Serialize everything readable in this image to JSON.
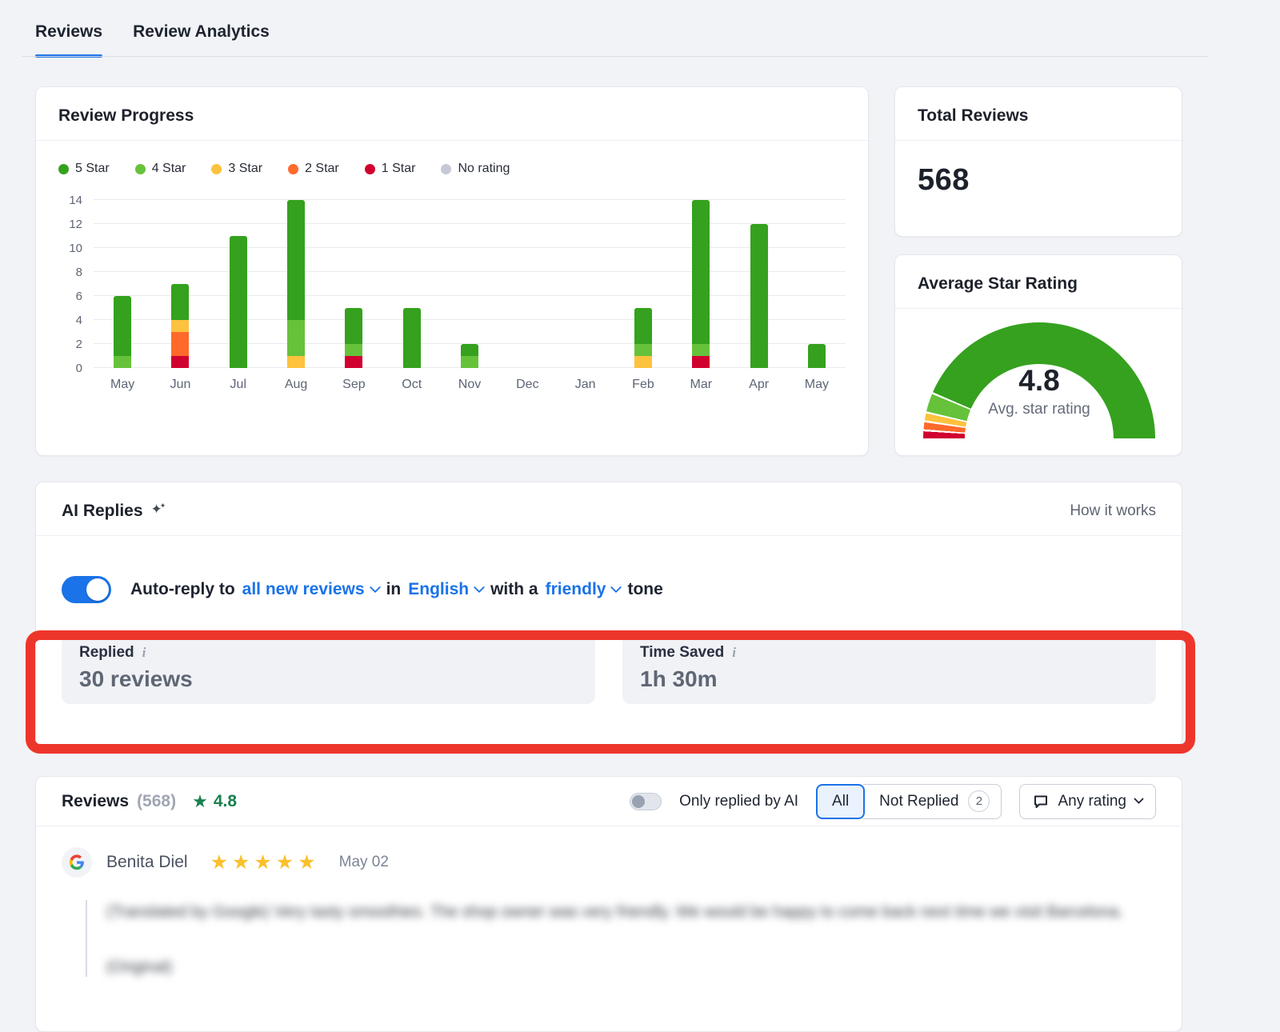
{
  "tabs": {
    "reviews": "Reviews",
    "review_analytics": "Review Analytics"
  },
  "review_progress": {
    "title": "Review Progress"
  },
  "chart_data": {
    "type": "stacked_bar",
    "title": "Review Progress",
    "categories": [
      "May",
      "Jun",
      "Jul",
      "Aug",
      "Sep",
      "Oct",
      "Nov",
      "Dec",
      "Jan",
      "Feb",
      "Mar",
      "Apr",
      "May"
    ],
    "series": [
      {
        "name": "1 Star",
        "color": "#d0002f",
        "values": [
          0,
          1,
          0,
          0,
          1,
          0,
          0,
          0,
          0,
          0,
          1,
          0,
          0
        ]
      },
      {
        "name": "2 Star",
        "color": "#ff6a2b",
        "values": [
          0,
          2,
          0,
          0,
          0,
          0,
          0,
          0,
          0,
          0,
          0,
          0,
          0
        ]
      },
      {
        "name": "3 Star",
        "color": "#fdc23e",
        "values": [
          0,
          1,
          0,
          1,
          0,
          0,
          0,
          0,
          0,
          1,
          0,
          0,
          0
        ]
      },
      {
        "name": "4 Star",
        "color": "#66c23a",
        "values": [
          1,
          0,
          0,
          3,
          1,
          0,
          1,
          0,
          0,
          1,
          1,
          0,
          0
        ]
      },
      {
        "name": "5 Star",
        "color": "#35a11e",
        "values": [
          5,
          3,
          11,
          10,
          3,
          5,
          1,
          0,
          0,
          3,
          12,
          12,
          2
        ]
      }
    ],
    "legend": [
      {
        "label": "5 Star",
        "color": "#35a11e"
      },
      {
        "label": "4 Star",
        "color": "#66c23a"
      },
      {
        "label": "3 Star",
        "color": "#fdc23e"
      },
      {
        "label": "2 Star",
        "color": "#ff6a2b"
      },
      {
        "label": "1 Star",
        "color": "#d0002f"
      },
      {
        "label": "No rating",
        "color": "#c4c9d4"
      }
    ],
    "ylim": [
      0,
      14
    ],
    "yticks": [
      0,
      2,
      4,
      6,
      8,
      10,
      12,
      14
    ],
    "grid": true,
    "legend_position": "top",
    "stack_order": "1-star at bottom, 5-star on top"
  },
  "total_reviews": {
    "title": "Total Reviews",
    "value": "568"
  },
  "average_star_rating": {
    "title": "Average Star Rating",
    "value": "4.8",
    "caption": "Avg. star rating",
    "gauge": {
      "gap_deg": 1,
      "segments": [
        {
          "label": "1 Star",
          "color": "#d0002f",
          "sweep_deg": 3.5
        },
        {
          "label": "2 Star",
          "color": "#ff6a2b",
          "sweep_deg": 3.5
        },
        {
          "label": "3 Star",
          "color": "#fdc23e",
          "sweep_deg": 3.5
        },
        {
          "label": "4 Star",
          "color": "#66c23a",
          "sweep_deg": 9
        },
        {
          "label": "5 Star",
          "color": "#35a11e",
          "sweep_deg": 156.5
        }
      ]
    }
  },
  "ai_replies": {
    "title": "AI Replies",
    "how_it_works": "How it works",
    "toggle_on": true,
    "sentence": {
      "part1": "Auto-reply to",
      "reviews_dropdown": "all new reviews",
      "part2": "in",
      "language_dropdown": "English",
      "part3": "with a",
      "tone_dropdown": "friendly",
      "part4": "tone"
    },
    "stats": {
      "replied_label": "Replied",
      "replied_value": "30 reviews",
      "time_saved_label": "Time Saved",
      "time_saved_value": "1h 30m"
    }
  },
  "reviews_section": {
    "title": "Reviews",
    "count": "(568)",
    "avg_rating": "4.8",
    "filters": {
      "only_ai_label": "Only replied by AI",
      "all_label": "All",
      "not_replied_label": "Not Replied",
      "not_replied_count": "2",
      "any_rating_label": "Any rating"
    },
    "review": {
      "source": "Google",
      "author": "Benita Diel",
      "stars": 5,
      "date": "May 02",
      "text": "(Translated by Google) Very tasty smoothies. The shop owner was very friendly. We would be happy to come back next time we visit Barcelona.",
      "text2": "(Original)"
    }
  },
  "icons": {
    "star": "★",
    "sparkle": "✦",
    "info": "i"
  },
  "colors": {
    "accent_blue": "#1a73e8",
    "annotation_red": "#ee352c",
    "rating_green": "#17804e",
    "star_amber": "#fbc02d",
    "no_rating_gray": "#c4c9d4"
  }
}
